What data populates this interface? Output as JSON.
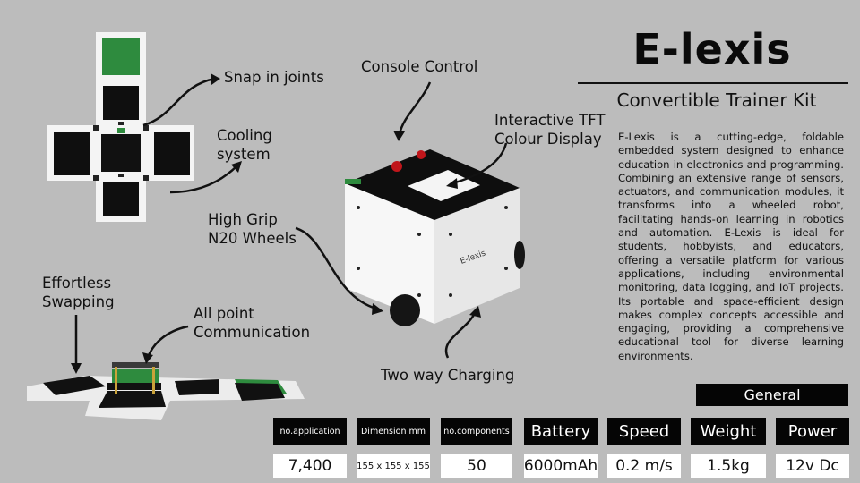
{
  "title": "E-lexis",
  "subtitle": "Convertible Trainer Kit",
  "description": "E-Lexis is a cutting-edge, foldable embedded system designed to enhance education in electronics and programming. Combining an extensive range of sensors, actuators, and communication modules, it transforms into a wheeled robot, facilitating hands-on learning in robotics and automation. E-Lexis is ideal for students, hobbyists, and educators, offering a versatile platform for various applications, including environmental monitoring, data logging, and IoT projects. Its portable and space-efficient design makes complex concepts accessible and engaging, providing a comprehensive educational tool for diverse learning environments.",
  "callouts": {
    "snap_joints": "Snap in joints",
    "cooling_line1": "Cooling",
    "cooling_line2": "system",
    "console_control": "Console Control",
    "tft_line1": "Interactive TFT",
    "tft_line2": "Colour Display",
    "wheels_line1": "High Grip",
    "wheels_line2": "N20 Wheels",
    "swap_line1": "Effortless",
    "swap_line2": "Swapping",
    "comm_line1": "All point",
    "comm_line2": "Communication",
    "charging": "Two way Charging"
  },
  "device_label": "E-lexis",
  "specs": {
    "section": "General",
    "items": [
      {
        "label": "no.application",
        "value": "7,400"
      },
      {
        "label": "Dimension mm",
        "value": "155 x 155 x 155"
      },
      {
        "label": "no.components",
        "value": "50"
      },
      {
        "label": "Battery",
        "value": "6000mAh"
      },
      {
        "label": "Speed",
        "value": "0.2 m/s"
      },
      {
        "label": "Weight",
        "value": "1.5kg"
      },
      {
        "label": "Power",
        "value": "12v Dc"
      }
    ]
  },
  "colors": {
    "background": "#bcbcbc",
    "header_fill": "#050505",
    "pcb_green": "#2e8b3e"
  }
}
